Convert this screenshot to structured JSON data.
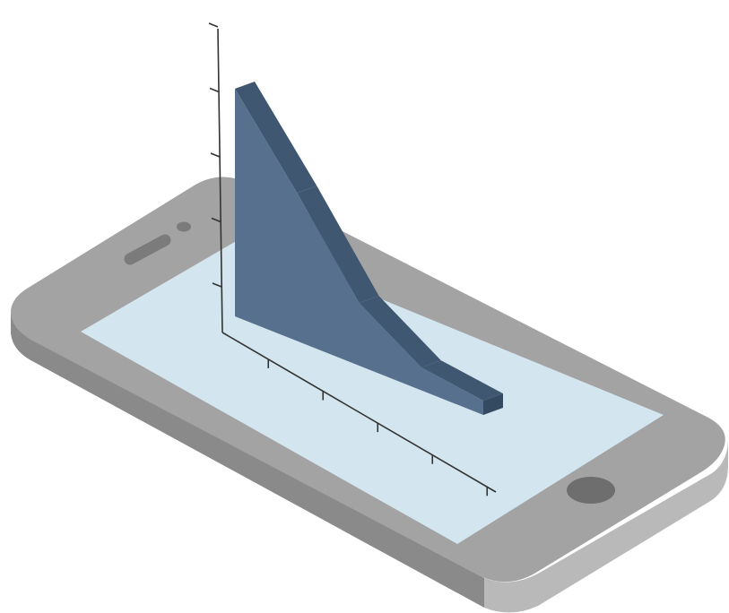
{
  "colors": {
    "phone_top": "#a3a3a3",
    "phone_side_left": "#8a8a8a",
    "phone_side_front": "#b9b9b9",
    "screen": "#d3e5ef",
    "speaker": "#7b7b7b",
    "home_button": "#6e6e6e",
    "area_front": "#56708d",
    "area_top": "#3f5770",
    "area_end": "#344a60",
    "axis": "#333333"
  },
  "icons": [
    "speaker-icon",
    "camera-icon",
    "home-button-icon"
  ],
  "chart_data": {
    "type": "area",
    "style": "3d-isometric",
    "title": "",
    "xlabel": "",
    "ylabel": "",
    "tick_labels_visible": false,
    "x_tick_count": 5,
    "y_tick_count": 5,
    "series": [
      {
        "values": [
          4.0,
          2.6,
          1.1,
          0.4,
          0.25
        ]
      }
    ]
  }
}
